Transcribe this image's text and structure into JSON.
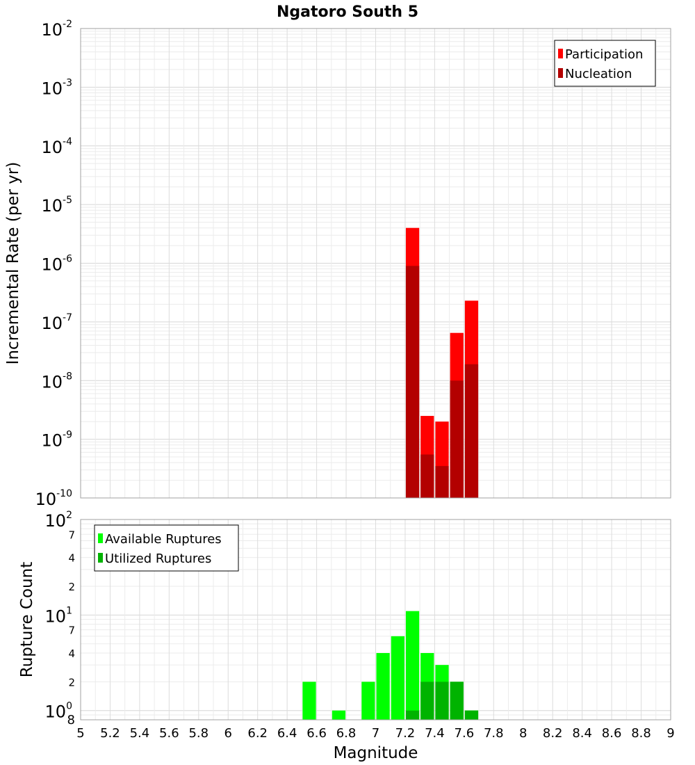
{
  "chart_data": [
    {
      "type": "bar",
      "title": "Ngatoro South 5",
      "ylabel": "Incremental Rate (per yr)",
      "xlabel": "",
      "yscale": "log",
      "ylim": [
        1e-10,
        0.01
      ],
      "xlim": [
        5,
        9
      ],
      "grid": true,
      "legend_position": "top-right",
      "y_tick_labels": [
        {
          "base": "10",
          "exp": "-10"
        },
        {
          "base": "10",
          "exp": "-9"
        },
        {
          "base": "10",
          "exp": "-8"
        },
        {
          "base": "10",
          "exp": "-7"
        },
        {
          "base": "10",
          "exp": "-6"
        },
        {
          "base": "10",
          "exp": "-5"
        },
        {
          "base": "10",
          "exp": "-4"
        },
        {
          "base": "10",
          "exp": "-3"
        },
        {
          "base": "10",
          "exp": "-2"
        }
      ],
      "bin_width": 0.1,
      "series": [
        {
          "name": "Participation",
          "color": "#ff0000",
          "points": [
            {
              "x": 7.25,
              "y": 4e-06
            },
            {
              "x": 7.35,
              "y": 2.5e-09
            },
            {
              "x": 7.45,
              "y": 2e-09
            },
            {
              "x": 7.55,
              "y": 6.5e-08
            },
            {
              "x": 7.65,
              "y": 2.3e-07
            }
          ]
        },
        {
          "name": "Nucleation",
          "color": "#b30000",
          "points": [
            {
              "x": 7.25,
              "y": 9e-07
            },
            {
              "x": 7.35,
              "y": 5.5e-10
            },
            {
              "x": 7.45,
              "y": 3.5e-10
            },
            {
              "x": 7.55,
              "y": 1e-08
            },
            {
              "x": 7.65,
              "y": 1.9e-08
            }
          ]
        }
      ]
    },
    {
      "type": "bar",
      "title": "",
      "ylabel": "Rupture Count",
      "xlabel": "Magnitude",
      "yscale": "log",
      "ylim": [
        0.8,
        100
      ],
      "xlim": [
        5,
        9
      ],
      "grid": true,
      "legend_position": "top-left",
      "x_ticks": [
        "5",
        "5.2",
        "5.4",
        "5.6",
        "5.8",
        "6",
        "6.2",
        "6.4",
        "6.6",
        "6.8",
        "7",
        "7.2",
        "7.4",
        "7.6",
        "7.8",
        "8",
        "8.2",
        "8.4",
        "8.6",
        "8.8",
        "9"
      ],
      "y_major_labels": [
        {
          "base": "10",
          "exp": "2"
        },
        {
          "base": "10",
          "exp": "1"
        },
        {
          "base": "10",
          "exp": "0"
        }
      ],
      "y_minor_labels": [
        "7",
        "4",
        "2",
        "7",
        "4",
        "2",
        "8"
      ],
      "bin_width": 0.1,
      "series": [
        {
          "name": "Available Ruptures",
          "color": "#00ff00",
          "points": [
            {
              "x": 6.55,
              "y": 2
            },
            {
              "x": 6.75,
              "y": 1
            },
            {
              "x": 6.95,
              "y": 2
            },
            {
              "x": 7.05,
              "y": 4
            },
            {
              "x": 7.15,
              "y": 6
            },
            {
              "x": 7.25,
              "y": 11
            },
            {
              "x": 7.35,
              "y": 4
            },
            {
              "x": 7.45,
              "y": 3
            },
            {
              "x": 7.55,
              "y": 2
            },
            {
              "x": 7.65,
              "y": 1
            }
          ]
        },
        {
          "name": "Utilized Ruptures",
          "color": "#00b300",
          "points": [
            {
              "x": 7.25,
              "y": 1
            },
            {
              "x": 7.35,
              "y": 2
            },
            {
              "x": 7.45,
              "y": 2
            },
            {
              "x": 7.55,
              "y": 2
            },
            {
              "x": 7.65,
              "y": 1
            }
          ]
        }
      ]
    }
  ]
}
